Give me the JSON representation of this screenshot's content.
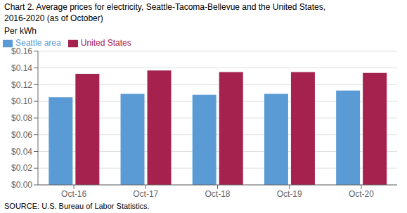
{
  "chart_data": {
    "type": "bar",
    "title": "Chart 2. Average prices for electricity, Seattle-Tacoma-Bellevue and the United States,",
    "subtitle": "2016-2020  (as of October)",
    "ylabel": "Per kWh",
    "annotations": [
      "SOURCE: U.S. Bureau of Labor Statistics."
    ],
    "categories": [
      "Oct-16",
      "Oct-17",
      "Oct-18",
      "Oct-19",
      "Oct-20"
    ],
    "series": [
      {
        "name": "Seattle area",
        "color": "#5B9BD5",
        "values": [
          0.105,
          0.109,
          0.108,
          0.109,
          0.113
        ]
      },
      {
        "name": "United States",
        "color": "#A5214E",
        "values": [
          0.133,
          0.137,
          0.135,
          0.135,
          0.134
        ]
      }
    ],
    "ylim": [
      0,
      0.16
    ],
    "yticks": [
      {
        "value": 0,
        "label": "$0.00"
      },
      {
        "value": 0.02,
        "label": "$0.02"
      },
      {
        "value": 0.04,
        "label": "$0.04"
      },
      {
        "value": 0.06,
        "label": "$0.06"
      },
      {
        "value": 0.08,
        "label": "$0.08"
      },
      {
        "value": 0.1,
        "label": "$0.10"
      },
      {
        "value": 0.12,
        "label": "$0.12"
      },
      {
        "value": 0.14,
        "label": "$0.14"
      },
      {
        "value": 0.16,
        "label": "$0.16"
      }
    ],
    "grid": true,
    "legend": "upper left"
  }
}
